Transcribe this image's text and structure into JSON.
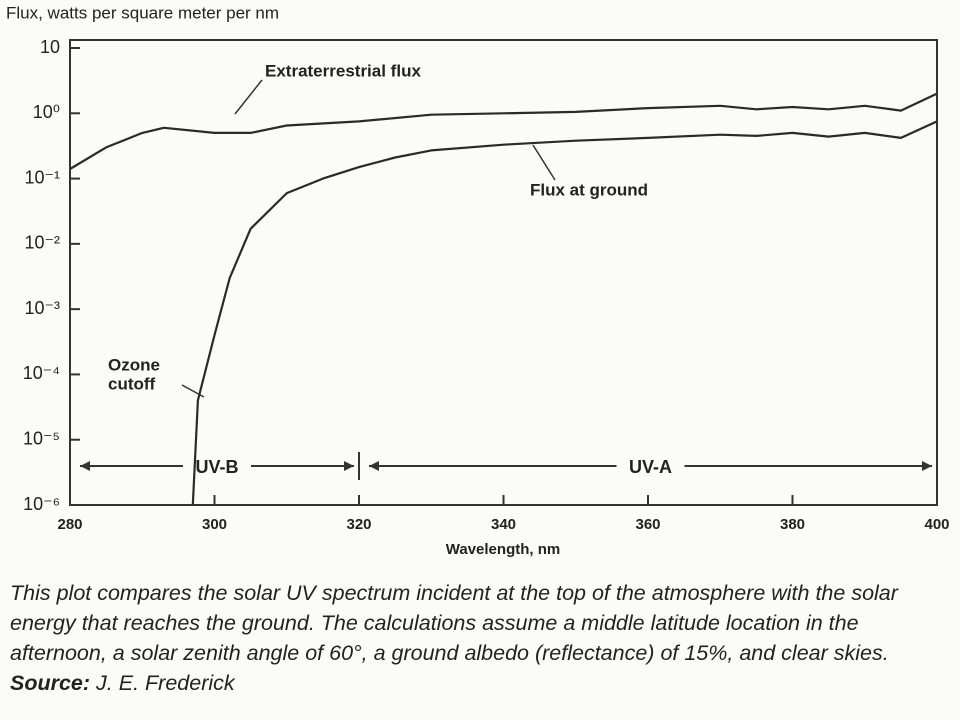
{
  "chart_data": {
    "type": "line",
    "title": "Flux, watts per square meter per nm",
    "x_label": "Wavelength, nm",
    "log_y": true,
    "xlim": [
      280,
      400
    ],
    "xticks": [
      280,
      300,
      320,
      340,
      360,
      380,
      400
    ],
    "ylim": [
      1e-06,
      10
    ],
    "yticks": [
      10,
      {
        "value": 1,
        "label": "10⁰"
      },
      {
        "value": 0.1,
        "label": "10⁻¹"
      },
      {
        "value": 0.01,
        "label": "10⁻²"
      },
      {
        "value": 0.001,
        "label": "10⁻³"
      },
      {
        "value": 0.0001,
        "label": "10⁻⁴"
      },
      {
        "value": 1e-05,
        "label": "10⁻⁵"
      },
      {
        "value": 1e-06,
        "label": "10⁻⁶"
      }
    ],
    "series": [
      {
        "name": "Extraterrestrial flux",
        "color": "#2a2a2a",
        "x": [
          280,
          285,
          290,
          293,
          300,
          305,
          310,
          320,
          330,
          340,
          350,
          360,
          370,
          375,
          380,
          385,
          390,
          395,
          400
        ],
        "values": [
          0.14,
          0.3,
          0.5,
          0.6,
          0.5,
          0.5,
          0.65,
          0.75,
          0.95,
          1.0,
          1.05,
          1.2,
          1.3,
          1.15,
          1.25,
          1.15,
          1.3,
          1.1,
          2.0
        ]
      },
      {
        "name": "Flux at ground",
        "color": "#2a2a2a",
        "x": [
          297,
          297.7,
          300,
          302.1,
          305,
          310,
          315,
          320,
          325,
          330,
          340,
          350,
          360,
          370,
          375,
          380,
          385,
          390,
          395,
          400
        ],
        "values": [
          1e-06,
          4e-05,
          0.0004,
          0.003,
          0.017,
          0.06,
          0.1,
          0.15,
          0.21,
          0.27,
          0.33,
          0.38,
          0.42,
          0.47,
          0.45,
          0.5,
          0.44,
          0.5,
          0.42,
          0.75
        ]
      }
    ],
    "annotation": [
      "Ozone",
      "cutoff"
    ],
    "regions": [
      {
        "label": "UV-B",
        "x": [
          280,
          320
        ]
      },
      {
        "label": "UV-A",
        "x": [
          320,
          400
        ]
      }
    ],
    "caption": {
      "text": "This plot compares the solar UV spectrum incident at the top of the atmosphere with the solar energy that reaches the ground. The calculations assume a middle latitude location in the afternoon, a solar zenith angle of 60°, a ground albedo (reflectance) of 15%, and clear skies.",
      "source_label": "Source:",
      "source": "J. E. Frederick"
    }
  }
}
